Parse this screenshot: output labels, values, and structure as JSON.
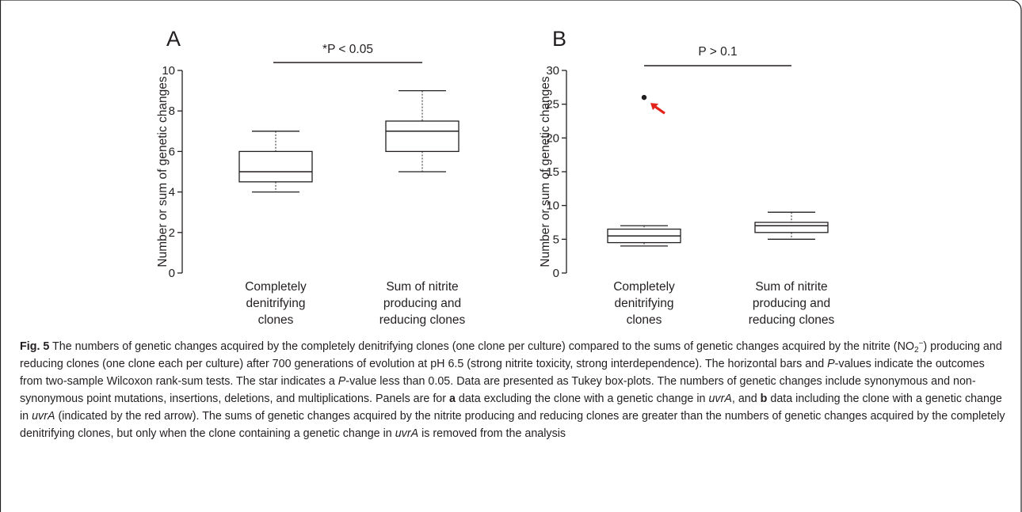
{
  "chart_data": [
    {
      "type": "box",
      "panel_label": "A",
      "ylabel": "Number or sum of genetic changes",
      "ylim": [
        0,
        10
      ],
      "yticks": [
        "0",
        "2",
        "4",
        "6",
        "8",
        "10"
      ],
      "categories": [
        [
          "Completely",
          "denitrifying",
          "clones"
        ],
        [
          "Sum of nitrite",
          "producing and",
          "reducing clones"
        ]
      ],
      "boxes": [
        {
          "whisker_low": 4,
          "q1": 4.5,
          "median": 5,
          "q3": 6,
          "whisker_high": 7
        },
        {
          "whisker_low": 5,
          "q1": 6,
          "median": 7,
          "q3": 7.5,
          "whisker_high": 9
        }
      ],
      "outliers": [],
      "significance": "*P < 0.05"
    },
    {
      "type": "box",
      "panel_label": "B",
      "ylabel": "Number or sum of genetic changes",
      "ylim": [
        0,
        30
      ],
      "yticks": [
        "0",
        "5",
        "10",
        "15",
        "20",
        "25",
        "30"
      ],
      "categories": [
        [
          "Completely",
          "denitrifying",
          "clones"
        ],
        [
          "Sum of nitrite",
          "producing and",
          "reducing clones"
        ]
      ],
      "boxes": [
        {
          "whisker_low": 4,
          "q1": 4.5,
          "median": 5.5,
          "q3": 6.5,
          "whisker_high": 7
        },
        {
          "whisker_low": 5,
          "q1": 6,
          "median": 7,
          "q3": 7.5,
          "whisker_high": 9
        }
      ],
      "outliers": [
        {
          "box": 0,
          "value": 26,
          "arrow_color": "#e2231a"
        }
      ],
      "significance": "P > 0.1"
    }
  ],
  "caption": {
    "fig_label": "Fig. 5",
    "runs": [
      [
        " The numbers of genetic changes acquired by the completely denitrifying clones (one clone per culture) compared to the sums of genetic changes acquired by the nitrite (NO",
        "n"
      ],
      [
        "2",
        "sub"
      ],
      [
        "−",
        "sup"
      ],
      [
        ") producing and reducing clones (one clone each per culture) after 700 generations of evolution at pH 6.5 (strong nitrite toxicity, strong interdependence). The horizontal bars and ",
        "n"
      ],
      [
        "P",
        "i"
      ],
      [
        "-values indicate the outcomes from two-sample Wilcoxon rank-sum tests. The star indicates a ",
        "n"
      ],
      [
        "P",
        "i"
      ],
      [
        "-value less than 0.05. Data are presented as Tukey box-plots. The numbers of genetic changes include synonymous and non-synonymous point mutations, insertions, deletions, and multiplications. Panels are for ",
        "n"
      ],
      [
        "a",
        "b"
      ],
      [
        " data excluding the clone with a genetic change in ",
        "n"
      ],
      [
        "uvrA",
        "i"
      ],
      [
        ", and ",
        "n"
      ],
      [
        "b",
        "b"
      ],
      [
        " data including the clone with a genetic change in ",
        "n"
      ],
      [
        "uvrA",
        "i"
      ],
      [
        " (indicated by the red arrow). The sums of genetic changes acquired by the nitrite producing and reducing clones are greater than the numbers of genetic changes acquired by the completely denitrifying clones, but only when the clone containing a genetic change in ",
        "n"
      ],
      [
        "uvrA",
        "i"
      ],
      [
        " is removed from the analysis",
        "n"
      ]
    ]
  }
}
